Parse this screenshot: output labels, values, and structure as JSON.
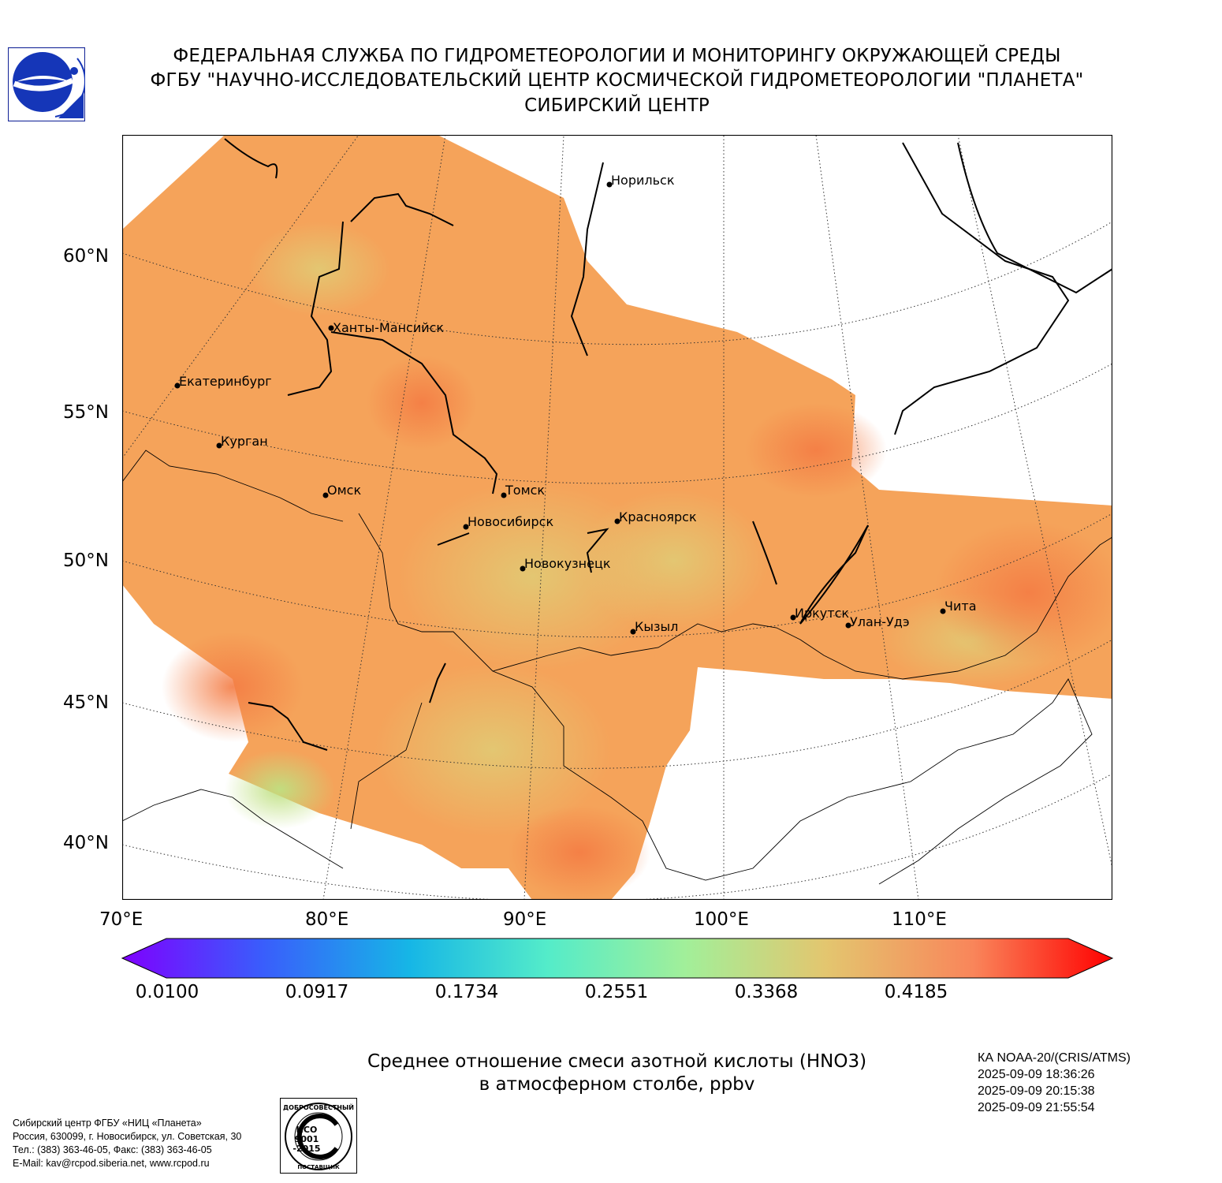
{
  "header": {
    "line1": "ФЕДЕРАЛЬНАЯ СЛУЖБА ПО ГИДРОМЕТЕОРОЛОГИИ И МОНИТОРИНГУ ОКРУЖАЮЩЕЙ СРЕДЫ",
    "line2": "ФГБУ \"НАУЧНО-ИССЛЕДОВАТЕЛЬСКИЙ ЦЕНТР КОСМИЧЕСКОЙ ГИДРОМЕТЕОРОЛОГИИ \"ПЛАНЕТА\"",
    "line3": "СИБИРСКИЙ ЦЕНТР"
  },
  "map": {
    "lat_labels": [
      "60°N",
      "55°N",
      "50°N",
      "45°N",
      "40°N"
    ],
    "lon_labels": [
      "70°E",
      "80°E",
      "90°E",
      "100°E",
      "110°E"
    ],
    "cities": [
      {
        "name": "Норильск"
      },
      {
        "name": "Ханты-Мансийск"
      },
      {
        "name": "Екатеринбург"
      },
      {
        "name": "Курган"
      },
      {
        "name": "Омск"
      },
      {
        "name": "Томск"
      },
      {
        "name": "Новосибирск"
      },
      {
        "name": "Красноярск"
      },
      {
        "name": "Новокузнецк"
      },
      {
        "name": "Кызыл"
      },
      {
        "name": "Иркутск"
      },
      {
        "name": "Улан-Удэ"
      },
      {
        "name": "Чита"
      }
    ],
    "field_colors": {
      "dominant": "#f5a055",
      "high": "#f68848",
      "mid": "#e8c070",
      "low": "#c8e080"
    }
  },
  "colorbar": {
    "labels": [
      "0.0100",
      "0.0917",
      "0.1734",
      "0.2551",
      "0.3368",
      "0.4185"
    ],
    "colors": [
      "#7f00ff",
      "#3a5cfc",
      "#16b6e6",
      "#54ecc9",
      "#a2ef99",
      "#e3c66f",
      "#f9855a",
      "#ff0000"
    ]
  },
  "caption": {
    "line1": "Среднее отношение смеси азотной кислоты (HNO3)",
    "line2": "в атмосферном столбе, ppbv"
  },
  "satellite": {
    "name": "КА NOAA-20/(CRIS/ATMS)",
    "times": [
      "2025-09-09 18:36:26",
      "2025-09-09 20:15:38",
      "2025-09-09 21:55:54"
    ]
  },
  "contact": {
    "line1": "Сибирский центр ФГБУ «НИЦ «Планета»",
    "line2": "Россия, 630099, г. Новосибирск, ул. Советская, 30",
    "line3": "Тел.: (383) 363-46-05, Факс: (383) 363-46-05",
    "line4": "E-Mail: kav@rcpod.siberia.net, www.rcpod.ru"
  },
  "iso_badge": {
    "top_text": "ДОБРОСОВЕСТНЫЙ",
    "l1": "ИСО",
    "l2": "9001",
    "l3": "-2015",
    "bottom_text": "ПОСТАВЩИК"
  }
}
